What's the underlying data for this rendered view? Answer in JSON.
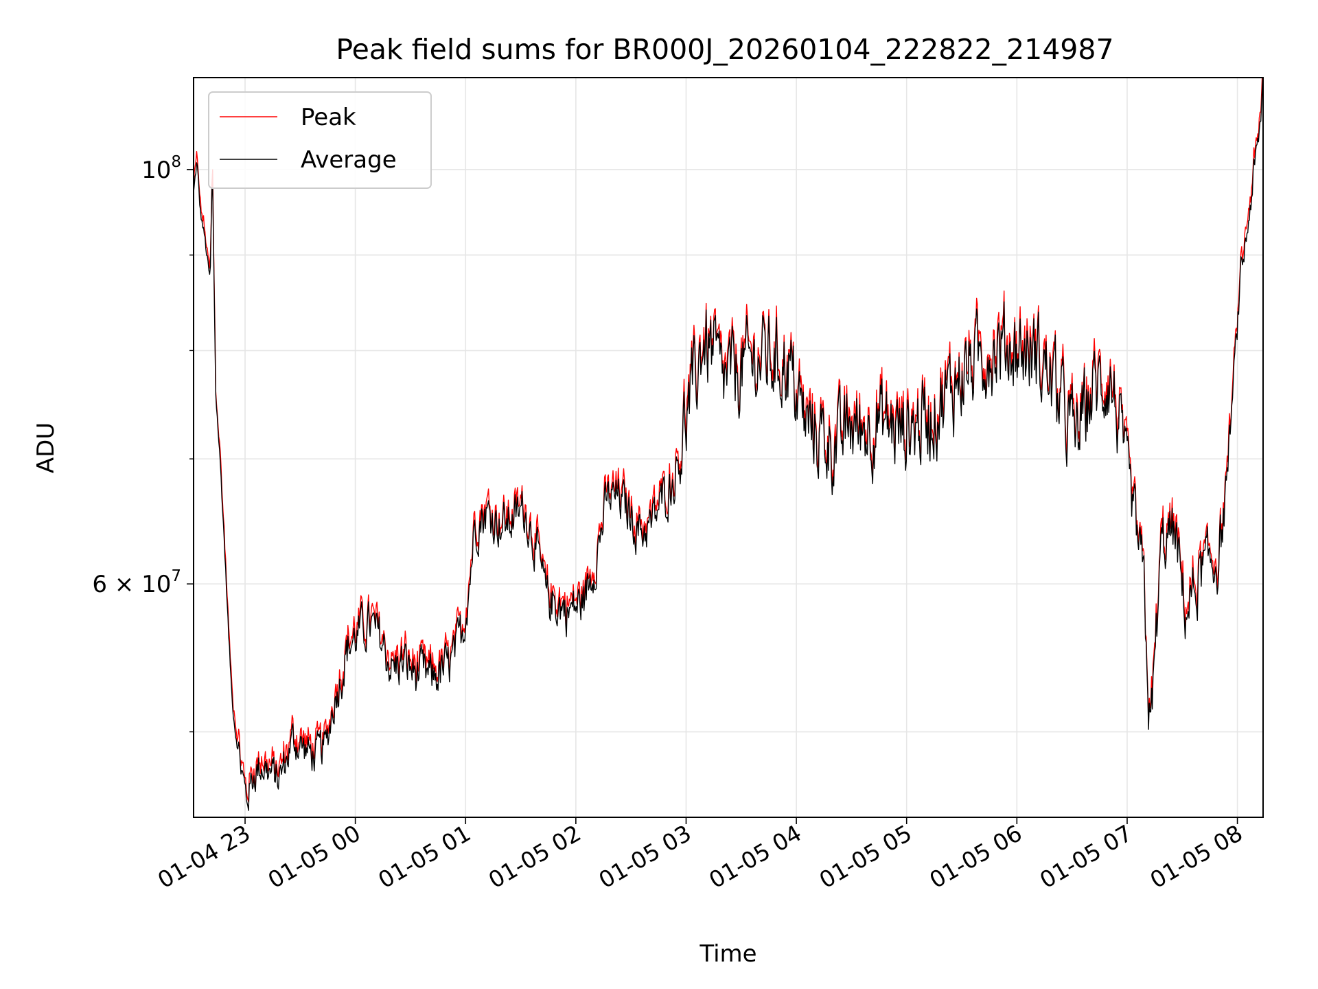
{
  "chart_data": {
    "type": "line",
    "title": "Peak field sums for BR000J_20260104_222822_214987",
    "xlabel": "Time",
    "ylabel": "ADU",
    "yscale": "log",
    "grid": true,
    "legend_position": "top-left",
    "x_unit": "hours since 2026-01-04 22:28",
    "xlim": [
      0.0,
      9.7
    ],
    "ylim": [
      45000000,
      112000000
    ],
    "x_ticks": [
      {
        "x": 0.467,
        "label": "01-04 23"
      },
      {
        "x": 1.467,
        "label": "01-05 00"
      },
      {
        "x": 2.467,
        "label": "01-05 01"
      },
      {
        "x": 3.467,
        "label": "01-05 02"
      },
      {
        "x": 4.467,
        "label": "01-05 03"
      },
      {
        "x": 5.467,
        "label": "01-05 04"
      },
      {
        "x": 6.467,
        "label": "01-05 05"
      },
      {
        "x": 7.467,
        "label": "01-05 06"
      },
      {
        "x": 8.467,
        "label": "01-05 07"
      },
      {
        "x": 9.467,
        "label": "01-05 08"
      }
    ],
    "y_ticks_major": [
      {
        "value": 100000000,
        "mantissa": "10",
        "exponent": "8"
      },
      {
        "value": 60000000,
        "mantissa": "6 × 10",
        "exponent": "7"
      }
    ],
    "y_ticks_minor": [
      50000000,
      70000000,
      80000000,
      90000000
    ],
    "series": [
      {
        "name": "Peak",
        "color": "#ff0000",
        "anchors": [
          [
            0.0,
            97000000
          ],
          [
            0.03,
            101000000
          ],
          [
            0.06,
            95000000
          ],
          [
            0.1,
            92000000
          ],
          [
            0.15,
            87000000
          ],
          [
            0.17,
            100000000
          ],
          [
            0.19,
            84000000
          ],
          [
            0.2,
            76000000
          ],
          [
            0.24,
            70000000
          ],
          [
            0.28,
            63000000
          ],
          [
            0.32,
            56000000
          ],
          [
            0.35,
            52000000
          ],
          [
            0.38,
            50000000
          ],
          [
            0.42,
            48500000
          ],
          [
            0.45,
            47000000
          ],
          [
            0.48,
            46000000
          ],
          [
            0.55,
            47500000
          ],
          [
            0.62,
            48000000
          ],
          [
            0.7,
            47500000
          ],
          [
            0.78,
            47200000
          ],
          [
            0.85,
            48500000
          ],
          [
            0.9,
            49500000
          ],
          [
            1.0,
            49000000
          ],
          [
            1.1,
            48500000
          ],
          [
            1.2,
            49200000
          ],
          [
            1.28,
            52000000
          ],
          [
            1.4,
            55500000
          ],
          [
            1.5,
            56500000
          ],
          [
            1.6,
            57000000
          ],
          [
            1.7,
            56000000
          ],
          [
            1.8,
            54000000
          ],
          [
            1.9,
            54500000
          ],
          [
            2.0,
            53800000
          ],
          [
            2.15,
            53500000
          ],
          [
            2.25,
            53800000
          ],
          [
            2.35,
            54500000
          ],
          [
            2.45,
            57000000
          ],
          [
            2.5,
            60000000
          ],
          [
            2.55,
            64500000
          ],
          [
            2.65,
            65500000
          ],
          [
            2.8,
            64500000
          ],
          [
            2.9,
            65000000
          ],
          [
            3.0,
            65800000
          ],
          [
            3.1,
            63000000
          ],
          [
            3.2,
            59000000
          ],
          [
            3.3,
            58500000
          ],
          [
            3.4,
            58000000
          ],
          [
            3.5,
            58500000
          ],
          [
            3.55,
            59000000
          ],
          [
            3.65,
            62000000
          ],
          [
            3.75,
            66500000
          ],
          [
            3.85,
            66800000
          ],
          [
            3.95,
            65500000
          ],
          [
            4.05,
            64000000
          ],
          [
            4.15,
            64500000
          ],
          [
            4.25,
            66500000
          ],
          [
            4.35,
            68000000
          ],
          [
            4.45,
            73000000
          ],
          [
            4.55,
            77000000
          ],
          [
            4.62,
            81000000
          ],
          [
            4.72,
            79500000
          ],
          [
            4.8,
            77000000
          ],
          [
            5.0,
            78500000
          ],
          [
            5.2,
            79500000
          ],
          [
            5.4,
            78500000
          ],
          [
            5.55,
            73000000
          ],
          [
            5.7,
            72000000
          ],
          [
            5.85,
            71000000
          ],
          [
            5.95,
            73000000
          ],
          [
            6.05,
            72500000
          ],
          [
            6.2,
            73500000
          ],
          [
            6.4,
            72500000
          ],
          [
            6.55,
            73000000
          ],
          [
            6.7,
            74000000
          ],
          [
            6.85,
            76000000
          ],
          [
            6.95,
            77500000
          ],
          [
            7.05,
            78500000
          ],
          [
            7.2,
            80000000
          ],
          [
            7.35,
            80500000
          ],
          [
            7.5,
            80000000
          ],
          [
            7.65,
            79500000
          ],
          [
            7.8,
            77000000
          ],
          [
            7.9,
            74000000
          ],
          [
            8.0,
            72000000
          ],
          [
            8.15,
            76000000
          ],
          [
            8.3,
            77500000
          ],
          [
            8.38,
            74000000
          ],
          [
            8.45,
            70000000
          ],
          [
            8.55,
            64000000
          ],
          [
            8.62,
            60000000
          ],
          [
            8.66,
            52000000
          ],
          [
            8.68,
            50000000
          ],
          [
            8.72,
            55000000
          ],
          [
            8.78,
            63000000
          ],
          [
            8.9,
            64000000
          ],
          [
            8.96,
            60000000
          ],
          [
            9.0,
            58000000
          ],
          [
            9.08,
            59500000
          ],
          [
            9.15,
            61000000
          ],
          [
            9.3,
            62000000
          ],
          [
            9.35,
            66000000
          ],
          [
            9.42,
            75000000
          ],
          [
            9.5,
            88000000
          ],
          [
            9.55,
            92000000
          ],
          [
            9.62,
            100000000
          ],
          [
            9.66,
            103000000
          ],
          [
            9.68,
            107000000
          ],
          [
            9.7,
            112000000
          ]
        ]
      },
      {
        "name": "Average",
        "color": "#000000"
      }
    ]
  }
}
